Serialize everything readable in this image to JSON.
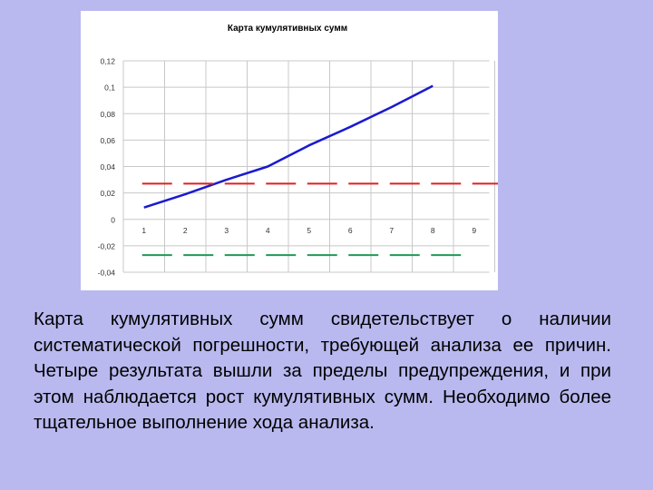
{
  "colors": {
    "background": "#b9b9f0",
    "panel": "#ffffff",
    "grid": "#c8c8c8",
    "series": "#1a1ad0",
    "upper_limit": "#e02020",
    "lower_limit": "#1f9a55"
  },
  "chart_data": {
    "type": "line",
    "title": "Карта кумулятивных сумм",
    "xlabel": "",
    "ylabel": "",
    "categories": [
      "1",
      "2",
      "3",
      "4",
      "5",
      "6",
      "7",
      "8",
      "9"
    ],
    "ylim": [
      -0.04,
      0.12
    ],
    "y_ticks": [
      "-0,04",
      "-0,02",
      "0",
      "0,02",
      "0,04",
      "0,06",
      "0,08",
      "0,1",
      "0,12"
    ],
    "y_tick_values": [
      -0.04,
      -0.02,
      0,
      0.02,
      0.04,
      0.06,
      0.08,
      0.1,
      0.12
    ],
    "grid": true,
    "series": [
      {
        "values": [
          0.009,
          0.019,
          0.03,
          0.04,
          0.056,
          0.07,
          0.085,
          0.101,
          null
        ],
        "style": "solid",
        "color": "#1a1ad0"
      },
      {
        "values": [
          0.027,
          0.027,
          0.027,
          0.027,
          0.027,
          0.027,
          0.027,
          0.027,
          0.027
        ],
        "style": "dashed",
        "color": "#e02020"
      },
      {
        "values": [
          -0.027,
          -0.027,
          -0.027,
          -0.027,
          -0.027,
          -0.027,
          -0.027,
          -0.027,
          null
        ],
        "style": "dashed",
        "color": "#1f9a55"
      }
    ]
  },
  "description": "Карта кумулятивных сумм свидетельствует о наличии систематической погрешности, требующей анализа ее причин. Четыре результата вышли за пределы предупреждения, и при этом наблюдается рост кумулятивных сумм. Необходимо более тщательное выполнение хода анализа."
}
